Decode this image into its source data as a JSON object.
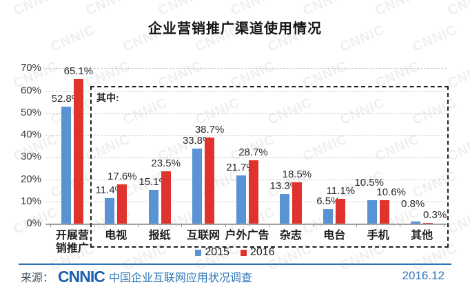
{
  "title": "企业营销推广渠道使用情况",
  "watermark_text": "CNNIC",
  "chart_data": {
    "type": "bar",
    "categories": [
      "开展营销推广",
      "电视",
      "报纸",
      "互联网",
      "户外广告",
      "杂志",
      "电台",
      "手机",
      "其他"
    ],
    "series": [
      {
        "name": "2015",
        "color": "#5A93D3",
        "values": [
          52.8,
          11.4,
          15.1,
          33.8,
          21.7,
          13.3,
          6.5,
          10.5,
          0.8
        ]
      },
      {
        "name": "2016",
        "color": "#E0332E",
        "values": [
          65.1,
          17.6,
          23.5,
          38.7,
          28.7,
          18.5,
          11.1,
          10.6,
          0.3
        ]
      }
    ],
    "value_suffix": "%",
    "yticks": [
      "0%",
      "10%",
      "20%",
      "30%",
      "40%",
      "50%",
      "60%",
      "70%"
    ],
    "ylim": [
      0,
      70
    ],
    "grid": "horizontal-dashed",
    "annotation_box_label": "其中:",
    "legend_position": "bottom-center"
  },
  "footer": {
    "source_prefix": "来源：",
    "logo_text": "CNNIC",
    "source_text": "中国企业互联网应用状况调查",
    "date": "2016.12"
  }
}
